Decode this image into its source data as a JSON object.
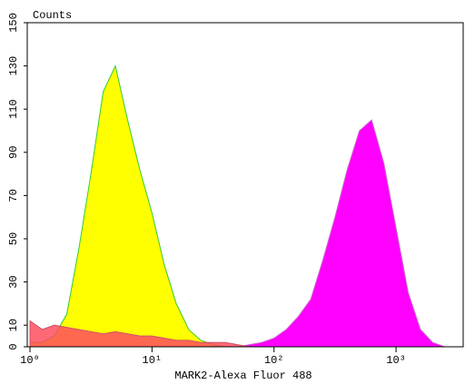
{
  "chart_data": {
    "type": "area",
    "y_label": "Counts",
    "x_label": "MARK2-Alexa Fluor 488",
    "x_log": true,
    "x": [
      1,
      1.26,
      1.58,
      2,
      2.51,
      3.16,
      3.98,
      5.01,
      6.31,
      7.94,
      10,
      12.6,
      15.8,
      20,
      25.1,
      31.6,
      39.8,
      50.1,
      63.1,
      79.4,
      100,
      126,
      158,
      200,
      251,
      316,
      398,
      501,
      631,
      794,
      1000,
      1259,
      1585,
      1995,
      2512,
      3162
    ],
    "series": [
      {
        "color": "#ffff00",
        "line_color": "#33cc33",
        "values": [
          2,
          2,
          5,
          15,
          45,
          80,
          118,
          130,
          105,
          82,
          62,
          38,
          20,
          8,
          3,
          1,
          0,
          0,
          0,
          0,
          0,
          0,
          0,
          0,
          0,
          0,
          0,
          0,
          0,
          0,
          0,
          0,
          0,
          0,
          0,
          0
        ]
      },
      {
        "color": "#ff00ff",
        "line_color": "#cc66cc",
        "values": [
          0,
          0,
          0,
          0,
          0,
          0,
          0,
          0,
          0,
          0,
          0,
          0,
          0,
          0,
          0,
          0,
          0,
          0,
          1,
          2,
          4,
          8,
          14,
          22,
          40,
          60,
          82,
          100,
          105,
          85,
          55,
          25,
          8,
          2,
          0,
          0
        ]
      },
      {
        "color": "#ff4d5e",
        "line_color": "#d0506a",
        "values": [
          12,
          8,
          10,
          9,
          8,
          7,
          6,
          7,
          6,
          5,
          5,
          4,
          3,
          3,
          2,
          2,
          2,
          1,
          0,
          0,
          0,
          0,
          0,
          0,
          0,
          0,
          0,
          0,
          0,
          0,
          0,
          0,
          0,
          0,
          0,
          0
        ]
      }
    ],
    "xlim": [
      0.95,
      3550
    ],
    "xticks": [
      {
        "value": 1,
        "label": "10⁰"
      },
      {
        "value": 10,
        "label": "10¹"
      },
      {
        "value": 100,
        "label": "10²"
      },
      {
        "value": 1000,
        "label": "10³"
      }
    ],
    "ylim": [
      0,
      150
    ],
    "yticks": [
      0,
      10,
      30,
      50,
      70,
      90,
      110,
      130,
      150
    ]
  }
}
